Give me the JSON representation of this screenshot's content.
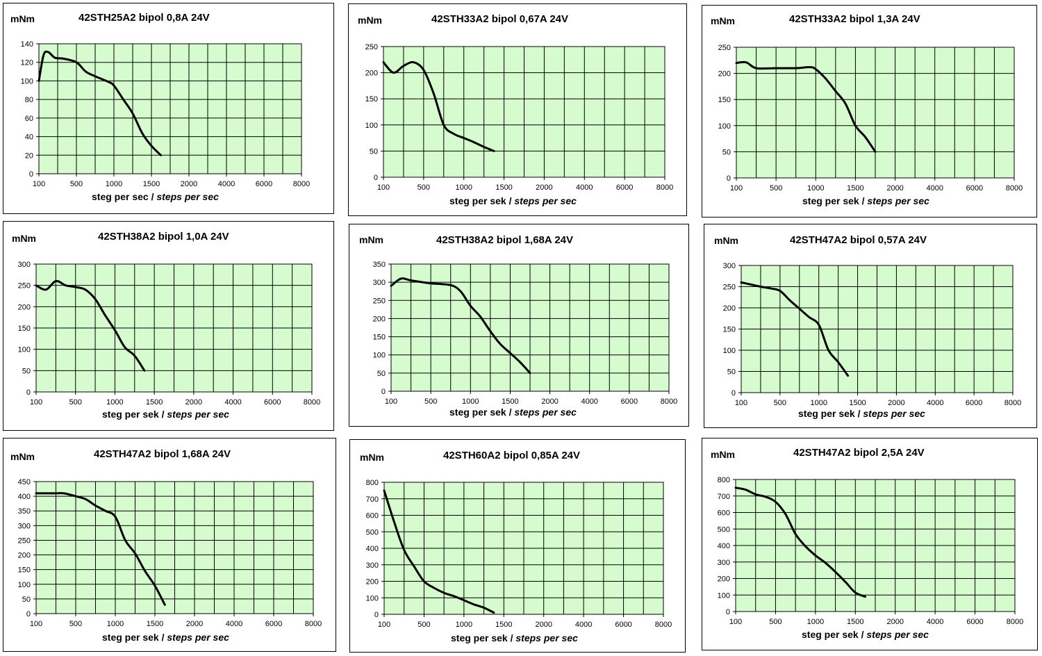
{
  "chart_data": [
    {
      "type": "line",
      "title": "42STH25A2 bipol 0,8A 24V",
      "ylabel": "mNm",
      "xlabel_main": "steg per sec",
      "xlabel_sep": " / ",
      "xlabel_italic": "steps per sec",
      "categories": [
        "100",
        "500",
        "1000",
        "1500",
        "2000",
        "4000",
        "6000",
        "8000"
      ],
      "ylim": [
        0,
        140
      ],
      "ystep": 20,
      "grid": true,
      "series": [
        {
          "values": [
            [
              0,
              100
            ],
            [
              0.25,
              128
            ],
            [
              0.5,
              131
            ],
            [
              0.85,
              125
            ],
            [
              1.3,
              124
            ],
            [
              2,
              120
            ],
            [
              2.5,
              110
            ],
            [
              3,
              105
            ],
            [
              3.7,
              99
            ],
            [
              4,
              95
            ],
            [
              4.5,
              80
            ],
            [
              5,
              65
            ],
            [
              5.5,
              44
            ],
            [
              6,
              30
            ],
            [
              6.5,
              20
            ]
          ]
        }
      ]
    },
    {
      "type": "line",
      "title": "42STH33A2 bipol 0,67A 24V",
      "ylabel": "mNm",
      "xlabel_main": "steg per sek",
      "xlabel_sep": " / ",
      "xlabel_italic": "steps per sec",
      "categories": [
        "100",
        "500",
        "1000",
        "1500",
        "2000",
        "4000",
        "6000",
        "8000"
      ],
      "ylim": [
        0,
        250
      ],
      "ystep": 50,
      "grid": true,
      "series": [
        {
          "values": [
            [
              0,
              220
            ],
            [
              0.5,
              200
            ],
            [
              1,
              213
            ],
            [
              1.5,
              220
            ],
            [
              2,
              205
            ],
            [
              2.5,
              160
            ],
            [
              3,
              100
            ],
            [
              3.5,
              83
            ],
            [
              4,
              75
            ],
            [
              4.5,
              67
            ],
            [
              5,
              58
            ],
            [
              5.5,
              50
            ]
          ]
        }
      ]
    },
    {
      "type": "line",
      "title": "42STH33A2 bipol 1,3A 24V",
      "ylabel": "mNm",
      "xlabel_main": "steg per sek",
      "xlabel_sep": " / ",
      "xlabel_italic": "steps per sec",
      "categories": [
        "100",
        "500",
        "1000",
        "1500",
        "2000",
        "4000",
        "6000",
        "8000"
      ],
      "ylim": [
        0,
        250
      ],
      "ystep": 50,
      "grid": true,
      "series": [
        {
          "values": [
            [
              0,
              220
            ],
            [
              0.5,
              221
            ],
            [
              1,
              210
            ],
            [
              2,
              210
            ],
            [
              3,
              210
            ],
            [
              3.7,
              212
            ],
            [
              4,
              208
            ],
            [
              4.5,
              190
            ],
            [
              5,
              166
            ],
            [
              5.5,
              142
            ],
            [
              6,
              100
            ],
            [
              6.5,
              78
            ],
            [
              7,
              50
            ]
          ]
        }
      ]
    },
    {
      "type": "line",
      "title": "42STH38A2 bipol 1,0A 24V",
      "ylabel": "mNm",
      "xlabel_main": "steg per sek",
      "xlabel_sep": " / ",
      "xlabel_italic": "steps per sec",
      "categories": [
        "100",
        "500",
        "1000",
        "1500",
        "2000",
        "4000",
        "6000",
        "8000"
      ],
      "ylim": [
        0,
        300
      ],
      "ystep": 50,
      "grid": true,
      "series": [
        {
          "values": [
            [
              0,
              250
            ],
            [
              0.5,
              240
            ],
            [
              1,
              260
            ],
            [
              1.5,
              250
            ],
            [
              2,
              246
            ],
            [
              2.5,
              240
            ],
            [
              3,
              218
            ],
            [
              3.5,
              180
            ],
            [
              4,
              145
            ],
            [
              4.5,
              105
            ],
            [
              5,
              85
            ],
            [
              5.5,
              50
            ]
          ]
        }
      ]
    },
    {
      "type": "line",
      "title": "42STH38A2 bipol 1,68A 24V",
      "ylabel": "mNm",
      "xlabel_main": "steg per sek",
      "xlabel_sep": " / ",
      "xlabel_italic": "steps per sec",
      "categories": [
        "100",
        "500",
        "1000",
        "1500",
        "2000",
        "4000",
        "6000",
        "8000"
      ],
      "ylim": [
        0,
        350
      ],
      "ystep": 50,
      "grid": true,
      "series": [
        {
          "values": [
            [
              0,
              290
            ],
            [
              0.5,
              310
            ],
            [
              1,
              305
            ],
            [
              2,
              297
            ],
            [
              3,
              292
            ],
            [
              3.5,
              275
            ],
            [
              4,
              235
            ],
            [
              4.5,
              205
            ],
            [
              5,
              165
            ],
            [
              5.5,
              130
            ],
            [
              6,
              105
            ],
            [
              6.5,
              80
            ],
            [
              7,
              50
            ]
          ]
        }
      ]
    },
    {
      "type": "line",
      "title": "42STH47A2 bipol 0,57A 24V",
      "ylabel": "mNm",
      "xlabel_main": "steg per sek",
      "xlabel_sep": " / ",
      "xlabel_italic": "steps per sec",
      "categories": [
        "100",
        "500",
        "1000",
        "1500",
        "2000",
        "4000",
        "6000",
        "8000"
      ],
      "ylim": [
        0,
        300
      ],
      "ystep": 50,
      "grid": true,
      "series": [
        {
          "values": [
            [
              0,
              260
            ],
            [
              1,
              250
            ],
            [
              1.5,
              246
            ],
            [
              2,
              240
            ],
            [
              2.5,
              218
            ],
            [
              3,
              198
            ],
            [
              3.5,
              178
            ],
            [
              4,
              160
            ],
            [
              4.5,
              100
            ],
            [
              5,
              72
            ],
            [
              5.5,
              40
            ]
          ]
        }
      ]
    },
    {
      "type": "line",
      "title": "42STH47A2 bipol 1,68A 24V",
      "ylabel": "mNm",
      "xlabel_main": "steg per sek",
      "xlabel_sep": " / ",
      "xlabel_italic": "steps per sec",
      "categories": [
        "100",
        "500",
        "1000",
        "1500",
        "2000",
        "4000",
        "6000",
        "8000"
      ],
      "ylim": [
        0,
        450
      ],
      "ystep": 50,
      "grid": true,
      "series": [
        {
          "values": [
            [
              0,
              410
            ],
            [
              0.5,
              410
            ],
            [
              1,
              410
            ],
            [
              1.4,
              410
            ],
            [
              2,
              400
            ],
            [
              2.5,
              390
            ],
            [
              3,
              368
            ],
            [
              3.5,
              350
            ],
            [
              4,
              330
            ],
            [
              4.5,
              250
            ],
            [
              5,
              205
            ],
            [
              5.5,
              145
            ],
            [
              6,
              95
            ],
            [
              6.5,
              30
            ]
          ]
        }
      ]
    },
    {
      "type": "line",
      "title": "42STH60A2 bipol 0,85A 24V",
      "ylabel": "mNm",
      "xlabel_main": "steg per sek",
      "xlabel_sep": " / ",
      "xlabel_italic": "steps per sec",
      "categories": [
        "100",
        "500",
        "1000",
        "1500",
        "2000",
        "4000",
        "6000",
        "8000"
      ],
      "ylim": [
        0,
        800
      ],
      "ystep": 100,
      "grid": true,
      "series": [
        {
          "values": [
            [
              0,
              750
            ],
            [
              0.5,
              560
            ],
            [
              1,
              390
            ],
            [
              1.5,
              290
            ],
            [
              2,
              200
            ],
            [
              2.5,
              160
            ],
            [
              3,
              130
            ],
            [
              3.5,
              110
            ],
            [
              4,
              85
            ],
            [
              4.5,
              60
            ],
            [
              5,
              40
            ],
            [
              5.5,
              10
            ]
          ]
        }
      ]
    },
    {
      "type": "line",
      "title": "42STH47A2 bipol 2,5A 24V",
      "ylabel": "mNm",
      "xlabel_main": "steg per sek",
      "xlabel_sep": " / ",
      "xlabel_italic": "steps per sec",
      "categories": [
        "100",
        "500",
        "1000",
        "1500",
        "2000",
        "4000",
        "6000",
        "8000"
      ],
      "ylim": [
        0,
        800
      ],
      "ystep": 100,
      "grid": true,
      "series": [
        {
          "values": [
            [
              0,
              750
            ],
            [
              0.5,
              738
            ],
            [
              1,
              710
            ],
            [
              1.5,
              695
            ],
            [
              2,
              665
            ],
            [
              2.5,
              590
            ],
            [
              3,
              470
            ],
            [
              3.5,
              395
            ],
            [
              4,
              340
            ],
            [
              4.5,
              295
            ],
            [
              5,
              240
            ],
            [
              5.5,
              180
            ],
            [
              6,
              115
            ],
            [
              6.5,
              90
            ]
          ]
        }
      ]
    }
  ]
}
